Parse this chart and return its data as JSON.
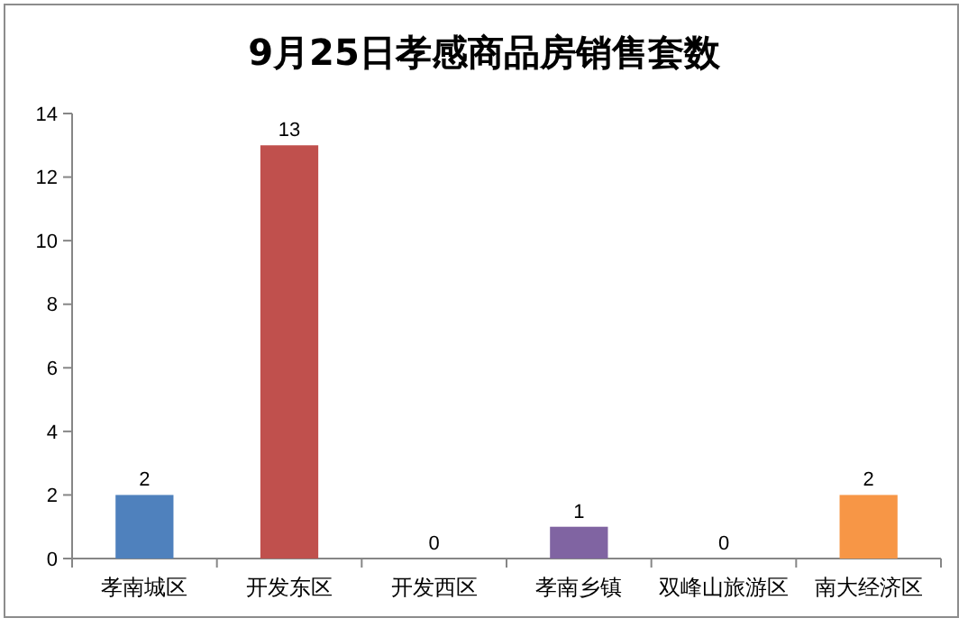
{
  "chart_data": {
    "type": "bar",
    "title": "9月25日孝感商品房销售套数",
    "categories": [
      "孝南城区",
      "开发东区",
      "开发西区",
      "孝南乡镇",
      "双峰山旅游区",
      "南大经济区"
    ],
    "values": [
      2,
      13,
      0,
      1,
      0,
      2
    ],
    "colors": [
      "#4f81bd",
      "#c0504d",
      "#9bbb59",
      "#8064a2",
      "#4bacc6",
      "#f79646"
    ],
    "ylim": [
      0,
      14
    ],
    "yticks": [
      0,
      2,
      4,
      6,
      8,
      10,
      12,
      14
    ],
    "grid": false,
    "data_labels": true
  }
}
